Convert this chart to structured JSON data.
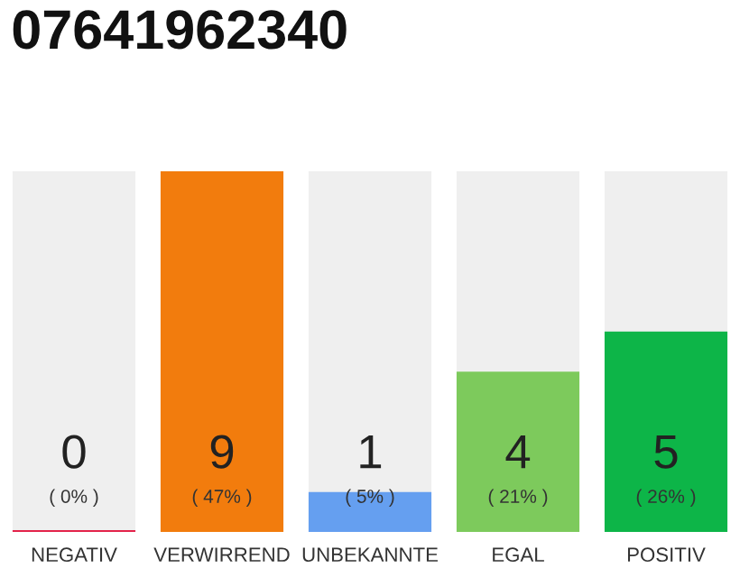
{
  "chart_data": {
    "type": "bar",
    "title": "07641962340",
    "categories": [
      "NEGATIV",
      "VERWIRREND",
      "UNBEKANNTE",
      "EGAL",
      "POSITIV"
    ],
    "values": [
      0,
      9,
      1,
      4,
      5
    ],
    "colors": [
      "#e3234a",
      "#f27c0d",
      "#659ff0",
      "#7dca5c",
      "#0db548"
    ],
    "data_labels": true,
    "annotations": [
      "( 0% )",
      "( 47% )",
      "( 5% )",
      "( 21% )",
      "( 26% )"
    ],
    "grid": false,
    "legend": false
  }
}
